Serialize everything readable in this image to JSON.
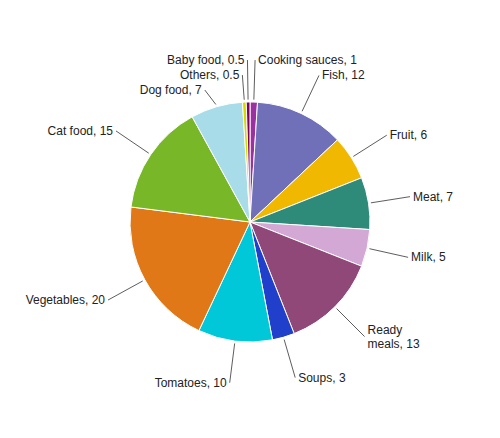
{
  "chart_data": {
    "type": "pie",
    "categories": [
      "Cooking sauces, 1",
      "Fish, 12",
      "Fruit, 6",
      "Meat, 7",
      "Milk, 5",
      "Ready\nmeals, 13",
      "Soups, 3",
      "Tomatoes, 10",
      "Vegetables, 20",
      "Cat food, 15",
      "Dog food, 7",
      "Others, 0.5",
      "Baby food, 0.5"
    ],
    "values": [
      1,
      12,
      6,
      7,
      5,
      13,
      3,
      10,
      20,
      15,
      7,
      0.5,
      0.5
    ],
    "colors": [
      "#9b30a0",
      "#7070b8",
      "#f0b800",
      "#2e8b7a",
      "#d4a8d4",
      "#904878",
      "#2040cc",
      "#00c8d8",
      "#e07818",
      "#78b828",
      "#a8dce8",
      "#d8d800",
      "#800060"
    ]
  }
}
